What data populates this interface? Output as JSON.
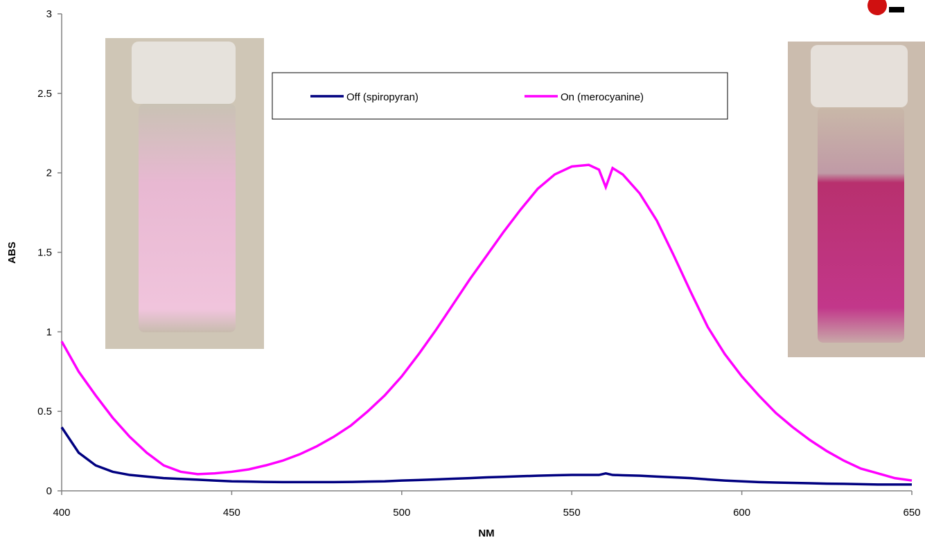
{
  "chart_data": {
    "type": "line",
    "x_label": "NM",
    "y_label": "ABS",
    "x": [
      400,
      405,
      410,
      415,
      420,
      425,
      430,
      435,
      440,
      445,
      450,
      455,
      460,
      465,
      470,
      475,
      480,
      485,
      490,
      495,
      500,
      505,
      510,
      515,
      520,
      525,
      530,
      535,
      540,
      545,
      550,
      555,
      558,
      560,
      562,
      565,
      570,
      575,
      580,
      585,
      590,
      595,
      600,
      605,
      610,
      615,
      620,
      625,
      630,
      635,
      640,
      645,
      650
    ],
    "series": [
      {
        "name": "Off (spiropyran)",
        "color": "#000080",
        "values": [
          0.4,
          0.24,
          0.16,
          0.12,
          0.1,
          0.09,
          0.08,
          0.075,
          0.07,
          0.065,
          0.06,
          0.058,
          0.056,
          0.055,
          0.055,
          0.055,
          0.055,
          0.056,
          0.058,
          0.06,
          0.065,
          0.068,
          0.072,
          0.076,
          0.08,
          0.085,
          0.088,
          0.092,
          0.095,
          0.098,
          0.1,
          0.1,
          0.1,
          0.11,
          0.1,
          0.098,
          0.095,
          0.09,
          0.085,
          0.08,
          0.072,
          0.065,
          0.06,
          0.055,
          0.052,
          0.05,
          0.048,
          0.045,
          0.044,
          0.042,
          0.04,
          0.04,
          0.04
        ]
      },
      {
        "name": "On (merocyanine)",
        "color": "#ff00ff",
        "values": [
          0.94,
          0.75,
          0.6,
          0.46,
          0.34,
          0.24,
          0.16,
          0.12,
          0.105,
          0.11,
          0.12,
          0.135,
          0.16,
          0.19,
          0.23,
          0.28,
          0.34,
          0.41,
          0.5,
          0.6,
          0.72,
          0.86,
          1.01,
          1.17,
          1.33,
          1.48,
          1.63,
          1.77,
          1.9,
          1.99,
          2.04,
          2.05,
          2.02,
          1.91,
          2.03,
          1.99,
          1.87,
          1.7,
          1.48,
          1.25,
          1.03,
          0.86,
          0.72,
          0.6,
          0.49,
          0.4,
          0.32,
          0.25,
          0.19,
          0.14,
          0.11,
          0.08,
          0.065
        ]
      }
    ],
    "xlim": [
      400,
      650
    ],
    "xticks": [
      400,
      450,
      500,
      550,
      600,
      650
    ],
    "ylim": [
      0,
      3
    ],
    "yticks": [
      0,
      0.5,
      1,
      1.5,
      2,
      2.5,
      3
    ],
    "grid": false
  }
}
